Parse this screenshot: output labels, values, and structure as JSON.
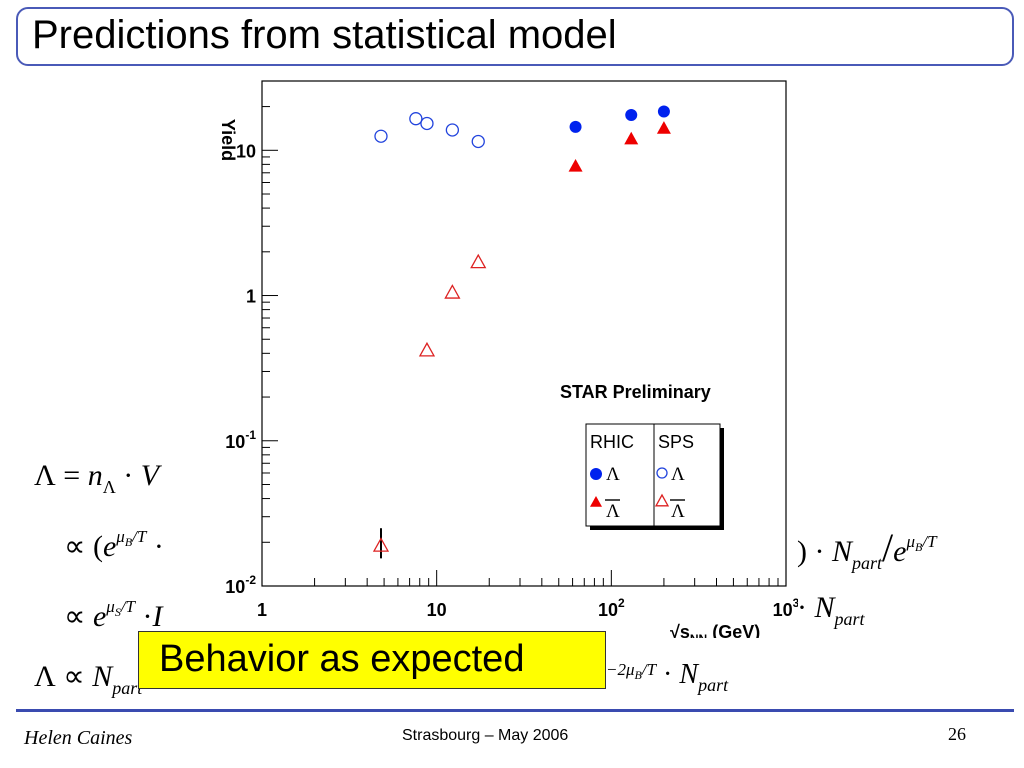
{
  "slide": {
    "title": "Predictions from statistical model",
    "callout": "Behavior as expected",
    "footer_author": "Helen Caines",
    "footer_center": "Strasbourg  –  May 2006",
    "page_number": "26"
  },
  "equations": {
    "eq1": {
      "lhs": "Λ",
      "rel": "=",
      "n": "n",
      "n_sub": "Λ",
      "dot": "·",
      "v": "V"
    },
    "eq2_left": {
      "prop": "∝",
      "paren": "(",
      "e": "e",
      "exp_mu": "μ",
      "exp_sub": "B",
      "exp_rest": "/T",
      "dot": "·"
    },
    "eq2_right": {
      "paren_close": ")",
      "dot": "·",
      "n": "N",
      "n_sub": "part",
      "slash": "/",
      "e": "e",
      "exp_mu": "μ",
      "exp_sub": "B",
      "exp_rest": "/T"
    },
    "eq3_left": {
      "prop": "∝",
      "e": "e",
      "exp_mu": "μ",
      "exp_sub": "S",
      "exp_rest": "/T",
      "dot": "·",
      "frag": "I"
    },
    "eq3_right": {
      "dot": "·",
      "n": "N",
      "n_sub": "part"
    },
    "eq4_left": {
      "lambda": "Λ",
      "prop": "∝",
      "n": "N",
      "n_sub": "part"
    },
    "eq4_right": {
      "exp": "−2μ",
      "exp_sub": "B",
      "exp_rest": "/T",
      "dot": "·",
      "n": "N",
      "n_sub": "part"
    }
  },
  "chart_data": {
    "type": "scatter",
    "x_scale": "log",
    "y_scale": "log",
    "xlim": [
      1,
      1000
    ],
    "ylim": [
      0.01,
      30
    ],
    "ylabel": "Yield",
    "xlabel_main": "√s",
    "xlabel_sub": "NN",
    "xlabel_unit": "(GeV)",
    "x_ticks": [
      {
        "value": 1,
        "base": "1",
        "exp": ""
      },
      {
        "value": 10,
        "base": "10",
        "exp": ""
      },
      {
        "value": 100,
        "base": "10",
        "exp": "2"
      },
      {
        "value": 1000,
        "base": "10",
        "exp": "3"
      }
    ],
    "y_ticks": [
      {
        "value": 0.01,
        "base": "10",
        "exp": "-2"
      },
      {
        "value": 0.1,
        "base": "10",
        "exp": "-1"
      },
      {
        "value": 1,
        "base": "1",
        "exp": ""
      },
      {
        "value": 10,
        "base": "10",
        "exp": ""
      }
    ],
    "annotation": "STAR Preliminary",
    "legend": {
      "headers": [
        "RHIC",
        "SPS"
      ],
      "row1": "Λ",
      "row2": "Λ"
    },
    "series": [
      {
        "name": "RHIC Λ",
        "marker": "circle-filled",
        "color": "#0022ee",
        "x": [
          62.4,
          130,
          200
        ],
        "y": [
          14.5,
          17.5,
          18.5
        ]
      },
      {
        "name": "RHIC anti-Λ",
        "marker": "triangle-filled",
        "color": "#ee0000",
        "x": [
          62.4,
          130,
          200
        ],
        "y": [
          7.8,
          12.0,
          14.2
        ]
      },
      {
        "name": "SPS Λ",
        "marker": "circle-open",
        "color": "#2244dd",
        "x": [
          4.8,
          7.6,
          8.8,
          12.3,
          17.3
        ],
        "y": [
          12.5,
          16.5,
          15.3,
          13.8,
          11.5
        ]
      },
      {
        "name": "SPS anti-Λ",
        "marker": "triangle-open",
        "color": "#dd2222",
        "x": [
          4.8,
          8.8,
          12.3,
          17.3
        ],
        "y": [
          0.019,
          0.42,
          1.05,
          1.7
        ]
      }
    ],
    "colors": {
      "axis": "#000000",
      "rhic_lambda": "#0022ee",
      "sps_lambda": "#2244dd",
      "rhic_antilambda": "#ee0000",
      "sps_antilambda": "#dd2222"
    }
  }
}
